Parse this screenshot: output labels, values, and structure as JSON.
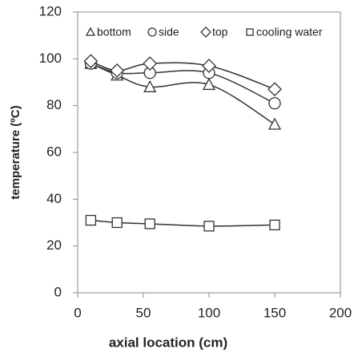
{
  "chart_data": {
    "type": "scatter",
    "x_label": "axial location (cm)",
    "y_label": "temperature (ºC)",
    "x": [
      10,
      30,
      55,
      100,
      150
    ],
    "series": [
      {
        "name": "bottom",
        "marker": "triangle",
        "color": "#333333",
        "values": [
          98,
          93,
          88,
          89,
          72
        ]
      },
      {
        "name": "side",
        "marker": "circle",
        "color": "#333333",
        "values": [
          98,
          94,
          94,
          94,
          81
        ]
      },
      {
        "name": "top",
        "marker": "diamond",
        "color": "#333333",
        "values": [
          99,
          95,
          98,
          97,
          87
        ]
      },
      {
        "name": "cooling water",
        "marker": "square",
        "color": "#333333",
        "values": [
          31,
          30,
          29.5,
          28.5,
          29
        ]
      }
    ],
    "xlim": [
      0,
      200
    ],
    "xticks": [
      0,
      50,
      100,
      150,
      200
    ],
    "ylim": [
      0,
      120
    ],
    "yticks": [
      0,
      20,
      40,
      60,
      80,
      100,
      120
    ],
    "grid": false,
    "smooth_lines": true
  }
}
